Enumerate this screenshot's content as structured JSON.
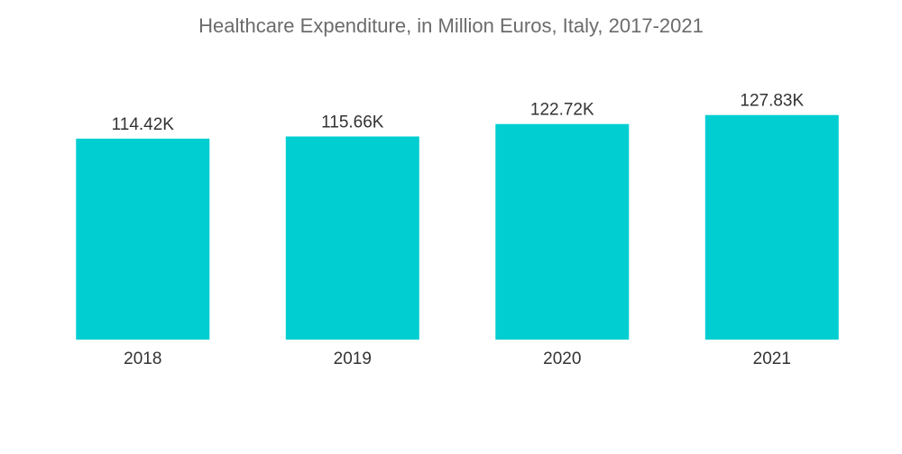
{
  "chart_data": {
    "type": "bar",
    "title": "Healthcare Expenditure, in Million Euros, Italy, 2017-2021",
    "categories": [
      "2018",
      "2019",
      "2020",
      "2021"
    ],
    "values": [
      114.42,
      115.66,
      122.72,
      127.83
    ],
    "data_labels": [
      "114.42K",
      "115.66K",
      "122.72K",
      "127.83K"
    ],
    "value_unit": "K",
    "xlabel": "",
    "ylabel": "",
    "ylim": [
      0,
      140
    ],
    "grid": false,
    "legend": "none",
    "bar_color": "#00CED1"
  }
}
